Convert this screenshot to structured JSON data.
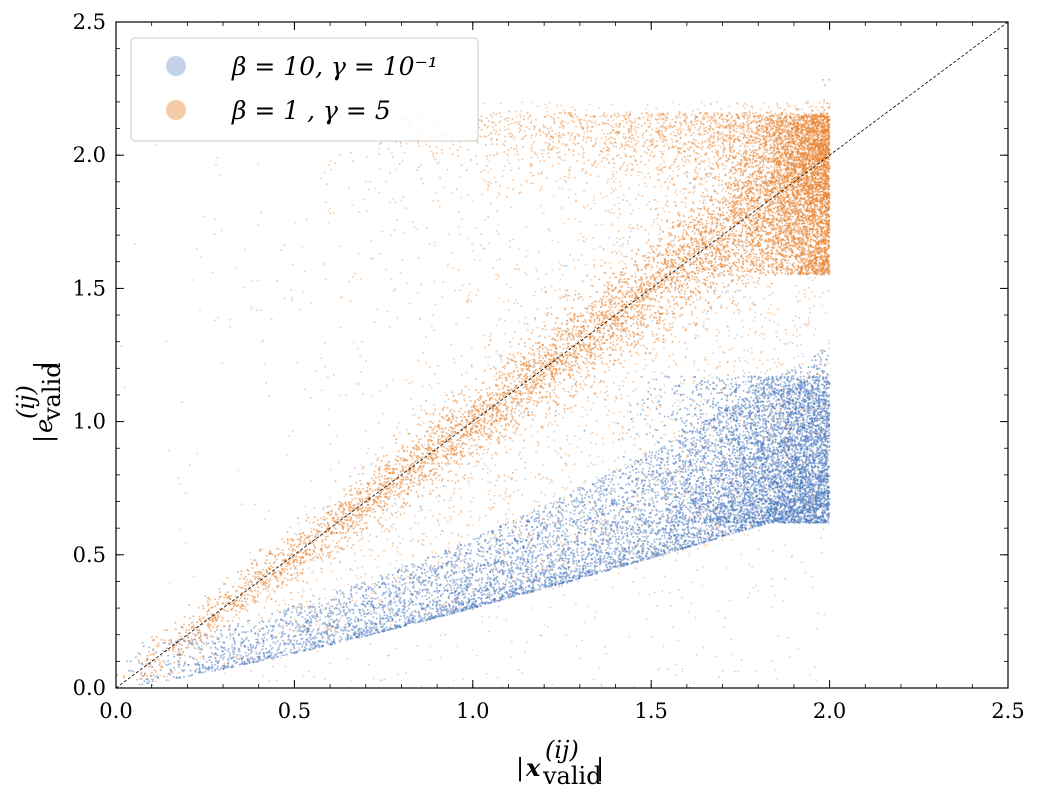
{
  "chart_data": {
    "type": "scatter",
    "title": "",
    "xlabel": "|x_valid^(ij)|",
    "ylabel": "|e_valid^(ij)|",
    "xlim": [
      0.0,
      2.5
    ],
    "ylim": [
      0.0,
      2.5
    ],
    "x_ticks": [
      "0.0",
      "0.5",
      "1.0",
      "1.5",
      "2.0",
      "2.5"
    ],
    "y_ticks": [
      "0.0",
      "0.5",
      "1.0",
      "1.5",
      "2.0",
      "2.5"
    ],
    "grid": false,
    "legend_position": "top-left",
    "reference_line": {
      "style": "dashed",
      "color": "#000000",
      "from": [
        0,
        0
      ],
      "to": [
        2.5,
        2.5
      ]
    },
    "series": [
      {
        "name": "β = 10, γ = 10⁻¹",
        "color": "#4a78bd",
        "legend_color": "#c5d3ea",
        "approx_points": [
          [
            0.1,
            0.03
          ],
          [
            0.25,
            0.08
          ],
          [
            0.5,
            0.15
          ],
          [
            0.75,
            0.22
          ],
          [
            1.0,
            0.3
          ],
          [
            1.25,
            0.37
          ],
          [
            1.5,
            0.45
          ],
          [
            1.75,
            0.55
          ],
          [
            1.9,
            0.65
          ],
          [
            2.0,
            0.75
          ],
          [
            2.0,
            0.9
          ],
          [
            2.0,
            1.05
          ],
          [
            1.5,
            0.6
          ],
          [
            1.0,
            0.45
          ],
          [
            0.5,
            0.2
          ]
        ]
      },
      {
        "name": "β = 1 , γ = 5",
        "color": "#e8822d",
        "legend_color": "#f4cba6",
        "approx_points": [
          [
            0.1,
            0.1
          ],
          [
            0.25,
            0.25
          ],
          [
            0.5,
            0.5
          ],
          [
            0.75,
            0.75
          ],
          [
            1.0,
            1.0
          ],
          [
            1.25,
            1.25
          ],
          [
            1.5,
            1.5
          ],
          [
            1.75,
            1.75
          ],
          [
            2.0,
            2.0
          ],
          [
            2.0,
            2.1
          ],
          [
            1.5,
            2.15
          ],
          [
            1.0,
            2.05
          ],
          [
            1.5,
            0.8
          ],
          [
            2.0,
            1.6
          ],
          [
            0.5,
            1.0
          ]
        ]
      }
    ]
  },
  "legend": {
    "label_1": "β = 10, γ = 10⁻¹",
    "label_2": "β = 1 , γ = 5"
  },
  "axes": {
    "xlabel": "|x_valid^(ij)|",
    "ylabel": "|e_valid^(ij)|"
  }
}
